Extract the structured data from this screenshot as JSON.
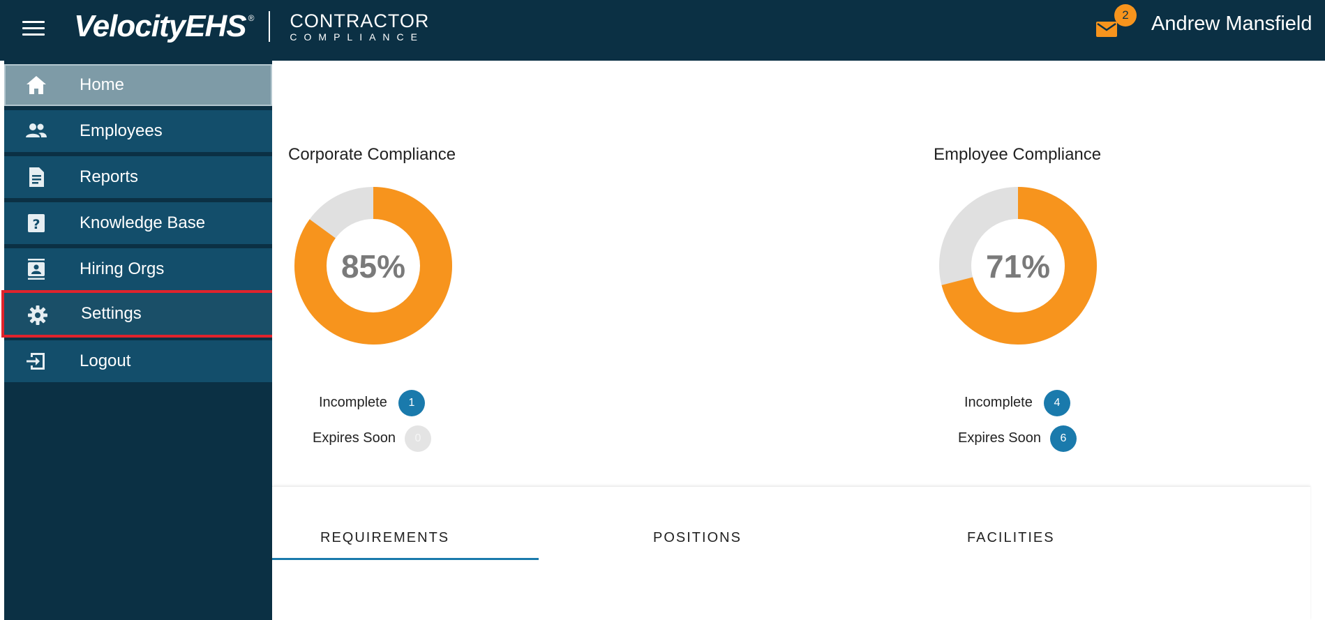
{
  "header": {
    "brand_main": "VelocityEHS",
    "brand_reg": "®",
    "brand_sub_line1": "CONTRACTOR",
    "brand_sub_line2": "COMPLIANCE",
    "mail_count": "2",
    "user_name": "Andrew Mansfield",
    "icons": [
      "menu-icon",
      "mail-icon"
    ]
  },
  "sidebar": {
    "items": [
      {
        "label": "Home",
        "icon": "home-icon",
        "state": "active"
      },
      {
        "label": "Employees",
        "icon": "people-icon"
      },
      {
        "label": "Reports",
        "icon": "document-icon"
      },
      {
        "label": "Knowledge Base",
        "icon": "help-icon"
      },
      {
        "label": "Hiring Orgs",
        "icon": "contact-card-icon"
      },
      {
        "label": "Settings",
        "icon": "gear-icon",
        "state": "highlighted"
      },
      {
        "label": "Logout",
        "icon": "logout-icon"
      }
    ]
  },
  "cards": {
    "corporate": {
      "title": "Corporate Compliance",
      "percent_label": "85%",
      "percent_value": 0.85,
      "incomplete_label": "Incomplete",
      "incomplete_count": "1",
      "expires_label": "Expires Soon",
      "expires_count": "0"
    },
    "employee": {
      "title": "Employee Compliance",
      "percent_label": "71%",
      "percent_value": 0.71,
      "incomplete_label": "Incomplete",
      "incomplete_count": "4",
      "expires_label": "Expires Soon",
      "expires_count": "6"
    }
  },
  "tabs": [
    {
      "label": "REQUIREMENTS",
      "active": true
    },
    {
      "label": "POSITIONS"
    },
    {
      "label": "FACILITIES"
    }
  ],
  "colors": {
    "header_bg": "#0b3044",
    "sidebar_item_bg": "#134e6b",
    "accent_orange": "#f7941d",
    "badge_blue": "#1a7aac",
    "donut_track": "#e0e0e0",
    "highlight_red": "#e0232c"
  }
}
